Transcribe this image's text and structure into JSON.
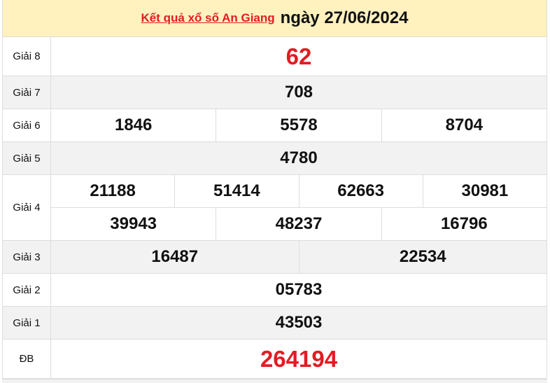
{
  "header": {
    "link": "Kết quả xổ số An Giang",
    "date": "ngày 27/06/2024"
  },
  "prizes": [
    {
      "label": "Giải 8",
      "rows": [
        [
          "62"
        ]
      ]
    },
    {
      "label": "Giải 7",
      "rows": [
        [
          "708"
        ]
      ]
    },
    {
      "label": "Giải 6",
      "rows": [
        [
          "1846",
          "5578",
          "8704"
        ]
      ]
    },
    {
      "label": "Giải 5",
      "rows": [
        [
          "4780"
        ]
      ]
    },
    {
      "label": "Giải 4",
      "rows": [
        [
          "21188",
          "51414",
          "62663",
          "30981"
        ],
        [
          "39943",
          "48237",
          "16796"
        ]
      ]
    },
    {
      "label": "Giải 3",
      "rows": [
        [
          "16487",
          "22534"
        ]
      ]
    },
    {
      "label": "Giải 2",
      "rows": [
        [
          "05783"
        ]
      ]
    },
    {
      "label": "Giải 1",
      "rows": [
        [
          "43503"
        ]
      ]
    },
    {
      "label": "ĐB",
      "rows": [
        [
          "264194"
        ]
      ]
    }
  ],
  "colors": {
    "accent": "#e31b23",
    "header_bg": "#fff2bf",
    "alt_row": "#f2f2f2"
  }
}
